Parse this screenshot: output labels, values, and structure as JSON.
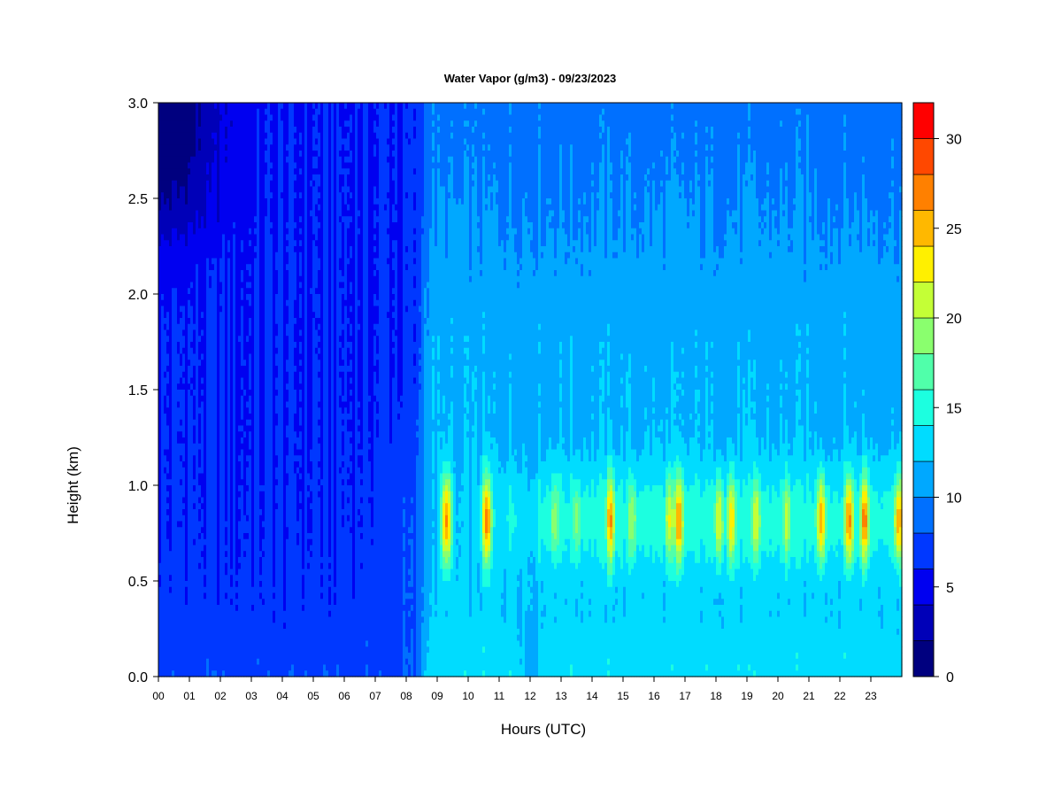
{
  "chart_data": {
    "type": "heatmap",
    "title": "Water Vapor (g/m3) - 09/23/2023",
    "xlabel": "Hours (UTC)",
    "ylabel": "Height (km)",
    "x_range": [
      0,
      24
    ],
    "y_range": [
      0,
      3
    ],
    "x_ticks": [
      "00",
      "01",
      "02",
      "03",
      "04",
      "05",
      "06",
      "07",
      "08",
      "09",
      "10",
      "11",
      "12",
      "13",
      "14",
      "15",
      "16",
      "17",
      "18",
      "19",
      "20",
      "21",
      "22",
      "23"
    ],
    "y_ticks": [
      "0.0",
      "0.5",
      "1.0",
      "1.5",
      "2.0",
      "2.5",
      "3.0"
    ],
    "colorbar": {
      "range": [
        0,
        32
      ],
      "ticks": [
        "0",
        "5",
        "10",
        "15",
        "20",
        "25",
        "30"
      ],
      "tick_values": [
        0,
        5,
        10,
        15,
        20,
        25,
        30
      ],
      "levels": [
        0,
        2,
        4,
        6,
        8,
        10,
        12,
        14,
        16,
        18,
        20,
        22,
        24,
        26,
        28,
        30,
        32
      ],
      "colors": [
        "#00007f",
        "#0000b8",
        "#0000f0",
        "#0038ff",
        "#0070ff",
        "#00a8ff",
        "#00dcff",
        "#1cffe0",
        "#50ffaa",
        "#8aff6e",
        "#c4ff36",
        "#fff000",
        "#ffb800",
        "#ff8000",
        "#ff4800",
        "#ff0000",
        "#c00000",
        "#800000"
      ]
    },
    "moisture_layer": {
      "peak_height_km": 0.82,
      "peaks": [
        {
          "hour": 9.3,
          "value": 27
        },
        {
          "hour": 10.6,
          "value": 27
        },
        {
          "hour": 12.8,
          "value": 20
        },
        {
          "hour": 13.5,
          "value": 19
        },
        {
          "hour": 14.6,
          "value": 26
        },
        {
          "hour": 15.3,
          "value": 20
        },
        {
          "hour": 16.5,
          "value": 22
        },
        {
          "hour": 16.8,
          "value": 26
        },
        {
          "hour": 18.1,
          "value": 23
        },
        {
          "hour": 18.5,
          "value": 24
        },
        {
          "hour": 19.3,
          "value": 22
        },
        {
          "hour": 20.3,
          "value": 21
        },
        {
          "hour": 21.4,
          "value": 26
        },
        {
          "hour": 22.3,
          "value": 27
        },
        {
          "hour": 22.8,
          "value": 27
        },
        {
          "hour": 23.9,
          "value": 26
        }
      ]
    }
  }
}
